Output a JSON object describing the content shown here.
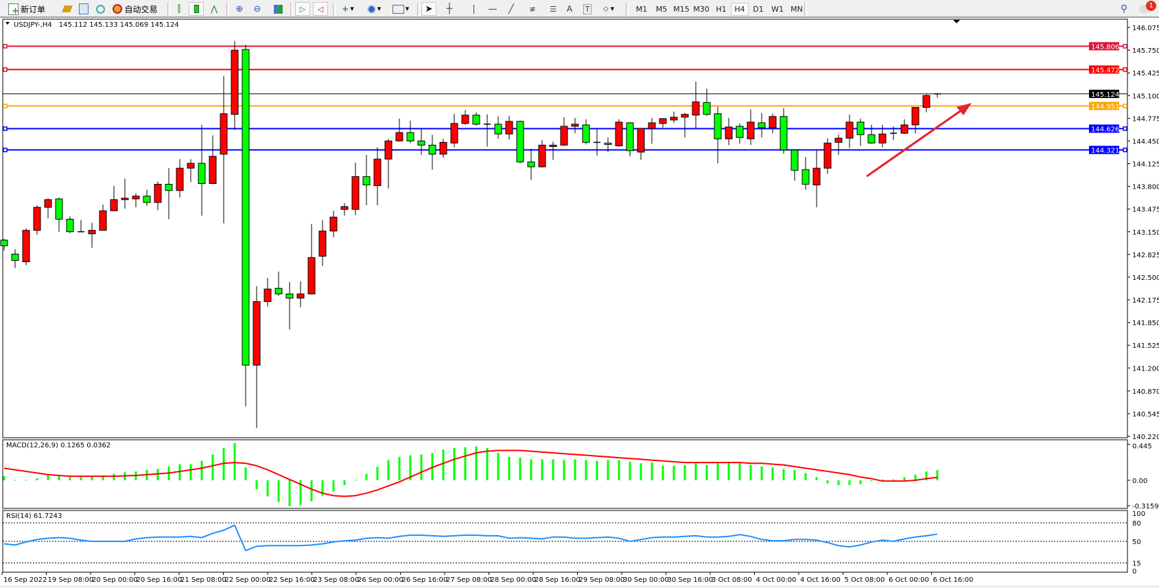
{
  "toolbar": {
    "new_order_label": "新订单",
    "auto_trading_label": "自动交易",
    "icons": [
      "new-order-icon",
      "gold-icon",
      "terminal-icon",
      "signal-icon",
      "auto-trading-icon",
      "bar-chart-icon",
      "candlestick-icon",
      "line-chart-icon",
      "zoom-in-icon",
      "zoom-out-icon",
      "tile-windows-icon",
      "chart-shift-icon",
      "auto-scroll-icon",
      "indicators-icon",
      "periods-icon",
      "templates-icon",
      "cursor-icon",
      "crosshair-icon",
      "vertical-line-icon",
      "horizontal-line-icon",
      "trendline-icon",
      "fibonacci-icon",
      "fibo-fan-icon",
      "text-icon",
      "text-label-icon",
      "shapes-icon"
    ],
    "timeframes": [
      "M1",
      "M5",
      "M15",
      "M30",
      "H1",
      "H4",
      "D1",
      "W1",
      "MN"
    ],
    "active_timeframe": "H4",
    "notification_count": "1"
  },
  "chart": {
    "symbol_header": "USDJPY-,H4",
    "ohlc_header": "145.112 145.133 145.069 145.124",
    "price_ticks": [
      "146.075",
      "145.750",
      "145.425",
      "145.100",
      "144.775",
      "144.450",
      "144.125",
      "143.800",
      "143.475",
      "143.150",
      "142.825",
      "142.500",
      "142.175",
      "141.850",
      "141.525",
      "141.200",
      "140.870",
      "140.545",
      "140.220"
    ],
    "bid_price": "145.124",
    "horizontal_lines": [
      {
        "price": "145.806",
        "color": "#dc143c"
      },
      {
        "price": "145.472",
        "color": "#ff0000"
      },
      {
        "price": "144.951",
        "color": "#ffa500"
      },
      {
        "price": "144.626",
        "color": "#0000ff"
      },
      {
        "price": "144.321",
        "color": "#0000ff"
      }
    ],
    "bull_color": "#ff0000",
    "bear_color": "#00ff00",
    "arrow_color": "#e8212b",
    "time_labels": [
      "16 Sep 2022",
      "19 Sep 08:00",
      "20 Sep 00:00",
      "20 Sep 16:00",
      "21 Sep 08:00",
      "22 Sep 00:00",
      "22 Sep 16:00",
      "23 Sep 08:00",
      "26 Sep 00:00",
      "26 Sep 16:00",
      "27 Sep 08:00",
      "28 Sep 00:00",
      "28 Sep 16:00",
      "29 Sep 08:00",
      "30 Sep 00:00",
      "30 Sep 16:00",
      "3 Oct 08:00",
      "4 Oct 00:00",
      "4 Oct 16:00",
      "5 Oct 08:00",
      "6 Oct 00:00",
      "6 Oct 16:00"
    ],
    "candles_ohlc": [
      [
        143.03,
        143.05,
        142.88,
        142.95
      ],
      [
        142.83,
        142.9,
        142.63,
        142.74
      ],
      [
        142.72,
        143.2,
        142.67,
        143.17
      ],
      [
        143.17,
        143.53,
        143.11,
        143.5
      ],
      [
        143.5,
        143.63,
        143.34,
        143.61
      ],
      [
        143.62,
        143.64,
        143.15,
        143.33
      ],
      [
        143.33,
        143.37,
        143.13,
        143.15
      ],
      [
        143.15,
        143.32,
        143.15,
        143.15
      ],
      [
        143.12,
        143.28,
        142.92,
        143.17
      ],
      [
        143.17,
        143.54,
        143.17,
        143.45
      ],
      [
        143.45,
        143.81,
        143.45,
        143.61
      ],
      [
        143.61,
        143.91,
        143.48,
        143.63
      ],
      [
        143.62,
        143.7,
        143.5,
        143.66
      ],
      [
        143.66,
        143.75,
        143.52,
        143.57
      ],
      [
        143.57,
        143.87,
        143.46,
        143.83
      ],
      [
        143.83,
        144.06,
        143.33,
        143.74
      ],
      [
        143.74,
        144.19,
        143.64,
        144.06
      ],
      [
        144.06,
        144.19,
        143.86,
        144.13
      ],
      [
        144.13,
        144.68,
        143.38,
        143.84
      ],
      [
        143.84,
        144.53,
        143.84,
        144.23
      ],
      [
        144.26,
        145.38,
        143.27,
        144.84
      ],
      [
        144.83,
        145.88,
        144.61,
        145.75
      ],
      [
        145.76,
        145.83,
        140.65,
        141.24
      ],
      [
        141.24,
        142.37,
        140.34,
        142.15
      ],
      [
        142.15,
        142.49,
        142.08,
        142.33
      ],
      [
        142.34,
        142.58,
        142.23,
        142.26
      ],
      [
        142.26,
        142.43,
        141.75,
        142.2
      ],
      [
        142.2,
        142.44,
        142.07,
        142.26
      ],
      [
        142.26,
        143.26,
        142.25,
        142.78
      ],
      [
        142.8,
        143.32,
        142.66,
        143.16
      ],
      [
        143.16,
        143.45,
        143.07,
        143.36
      ],
      [
        143.47,
        143.56,
        143.38,
        143.51
      ],
      [
        143.47,
        144.14,
        143.39,
        143.94
      ],
      [
        143.94,
        144.25,
        143.53,
        143.82
      ],
      [
        143.81,
        144.36,
        143.53,
        144.19
      ],
      [
        144.19,
        144.48,
        143.77,
        144.45
      ],
      [
        144.45,
        144.77,
        144.44,
        144.57
      ],
      [
        144.57,
        144.74,
        144.42,
        144.45
      ],
      [
        144.45,
        144.62,
        144.25,
        144.39
      ],
      [
        144.39,
        144.54,
        144.04,
        144.26
      ],
      [
        144.26,
        144.48,
        144.21,
        144.43
      ],
      [
        144.42,
        144.84,
        144.36,
        144.7
      ],
      [
        144.7,
        144.89,
        144.68,
        144.82
      ],
      [
        144.82,
        144.86,
        144.67,
        144.69
      ],
      [
        144.69,
        144.83,
        144.37,
        144.69
      ],
      [
        144.69,
        144.8,
        144.48,
        144.55
      ],
      [
        144.55,
        144.81,
        144.47,
        144.73
      ],
      [
        144.73,
        144.74,
        144.13,
        144.15
      ],
      [
        144.15,
        144.34,
        143.89,
        144.08
      ],
      [
        144.08,
        144.46,
        144.07,
        144.39
      ],
      [
        144.37,
        144.44,
        144.18,
        144.39
      ],
      [
        144.39,
        144.79,
        144.38,
        144.66
      ],
      [
        144.66,
        144.78,
        144.56,
        144.69
      ],
      [
        144.68,
        144.76,
        144.4,
        144.43
      ],
      [
        144.43,
        144.62,
        144.24,
        144.43
      ],
      [
        144.42,
        144.5,
        144.29,
        144.4
      ],
      [
        144.38,
        144.76,
        144.37,
        144.72
      ],
      [
        144.71,
        144.72,
        144.23,
        144.31
      ],
      [
        144.29,
        144.63,
        144.18,
        144.63
      ],
      [
        144.63,
        144.78,
        144.41,
        144.71
      ],
      [
        144.7,
        144.77,
        144.64,
        144.77
      ],
      [
        144.75,
        144.87,
        144.71,
        144.79
      ],
      [
        144.79,
        144.85,
        144.5,
        144.83
      ],
      [
        144.82,
        145.3,
        144.63,
        145.01
      ],
      [
        145.0,
        145.2,
        144.81,
        144.83
      ],
      [
        144.84,
        144.94,
        144.13,
        144.48
      ],
      [
        144.48,
        144.78,
        144.39,
        144.65
      ],
      [
        144.66,
        144.7,
        144.41,
        144.5
      ],
      [
        144.48,
        144.9,
        144.39,
        144.72
      ],
      [
        144.71,
        144.85,
        144.5,
        144.64
      ],
      [
        144.64,
        144.84,
        144.56,
        144.8
      ],
      [
        144.8,
        144.92,
        144.27,
        144.32
      ],
      [
        144.32,
        144.32,
        143.88,
        144.03
      ],
      [
        144.04,
        144.22,
        143.75,
        143.83
      ],
      [
        143.82,
        144.32,
        143.5,
        144.06
      ],
      [
        144.06,
        144.49,
        143.98,
        144.42
      ],
      [
        144.43,
        144.54,
        144.25,
        144.49
      ],
      [
        144.49,
        144.83,
        144.35,
        144.72
      ],
      [
        144.72,
        144.77,
        144.38,
        144.54
      ],
      [
        144.54,
        144.68,
        144.41,
        144.42
      ],
      [
        144.42,
        144.68,
        144.36,
        144.55
      ],
      [
        144.56,
        144.66,
        144.46,
        144.56
      ],
      [
        144.56,
        144.76,
        144.55,
        144.68
      ],
      [
        144.68,
        144.93,
        144.56,
        144.93
      ],
      [
        144.93,
        145.12,
        144.86,
        145.1
      ],
      [
        145.112,
        145.133,
        145.069,
        145.124
      ]
    ]
  },
  "macd": {
    "label": "MACD(12,26,9) 0.1265 0.0362",
    "ticks": [
      "0.445",
      "0.00",
      "-0.3159"
    ],
    "histogram_color": "#00ff00",
    "signal_color": "#ff0000",
    "histogram": [
      0.05,
      0.005,
      0.005,
      0.025,
      0.06,
      0.05,
      0.04,
      0.04,
      0.05,
      0.06,
      0.08,
      0.1,
      0.11,
      0.13,
      0.14,
      0.17,
      0.2,
      0.2,
      0.24,
      0.32,
      0.4,
      0.46,
      0.16,
      -0.11,
      -0.2,
      -0.27,
      -0.32,
      -0.31,
      -0.26,
      -0.19,
      -0.14,
      -0.06,
      0.005,
      0.08,
      0.17,
      0.25,
      0.29,
      0.31,
      0.32,
      0.34,
      0.38,
      0.4,
      0.41,
      0.42,
      0.4,
      0.34,
      0.29,
      0.28,
      0.26,
      0.26,
      0.26,
      0.25,
      0.26,
      0.25,
      0.24,
      0.25,
      0.25,
      0.23,
      0.21,
      0.22,
      0.18,
      0.18,
      0.19,
      0.21,
      0.19,
      0.21,
      0.23,
      0.22,
      0.19,
      0.17,
      0.16,
      0.14,
      0.13,
      0.09,
      0.04,
      -0.04,
      -0.06,
      -0.06,
      -0.05,
      -0.01,
      0.01,
      0.01,
      0.04,
      0.07,
      0.11,
      0.1265
    ],
    "signal": [
      0.15,
      0.13,
      0.11,
      0.09,
      0.07,
      0.06,
      0.05,
      0.05,
      0.05,
      0.05,
      0.05,
      0.055,
      0.06,
      0.07,
      0.08,
      0.09,
      0.11,
      0.13,
      0.15,
      0.18,
      0.21,
      0.22,
      0.21,
      0.18,
      0.13,
      0.07,
      0.01,
      -0.05,
      -0.11,
      -0.16,
      -0.19,
      -0.2,
      -0.19,
      -0.16,
      -0.12,
      -0.07,
      -0.02,
      0.04,
      0.1,
      0.16,
      0.21,
      0.26,
      0.3,
      0.34,
      0.36,
      0.37,
      0.37,
      0.37,
      0.36,
      0.35,
      0.34,
      0.33,
      0.32,
      0.31,
      0.3,
      0.29,
      0.28,
      0.27,
      0.26,
      0.25,
      0.24,
      0.23,
      0.22,
      0.22,
      0.22,
      0.22,
      0.22,
      0.22,
      0.21,
      0.21,
      0.2,
      0.19,
      0.17,
      0.15,
      0.13,
      0.11,
      0.09,
      0.07,
      0.04,
      0.02,
      -0.01,
      -0.01,
      -0.01,
      0.0,
      0.02,
      0.0362
    ]
  },
  "rsi": {
    "label": "RSI(14) 61.7243",
    "ticks": [
      "100",
      "80",
      "50",
      "15",
      "0"
    ],
    "line_color": "#1e90ff",
    "values": [
      46,
      44,
      49,
      53,
      55,
      56,
      55,
      52,
      50,
      50,
      50,
      50,
      54,
      56,
      57,
      57,
      57,
      58,
      56,
      63,
      68,
      76,
      35,
      42,
      43,
      43,
      43,
      43,
      44,
      46,
      49,
      51,
      52,
      55,
      56,
      55,
      58,
      60,
      60,
      59,
      58,
      59,
      60,
      60,
      59,
      59,
      55,
      56,
      55,
      54,
      57,
      57,
      55,
      55,
      56,
      57,
      55,
      50,
      53,
      56,
      57,
      57,
      58,
      59,
      57,
      57,
      58,
      61,
      58,
      53,
      51,
      51,
      53,
      53,
      52,
      48,
      43,
      41,
      44,
      49,
      52,
      50,
      54,
      57,
      59,
      61.7243
    ]
  }
}
